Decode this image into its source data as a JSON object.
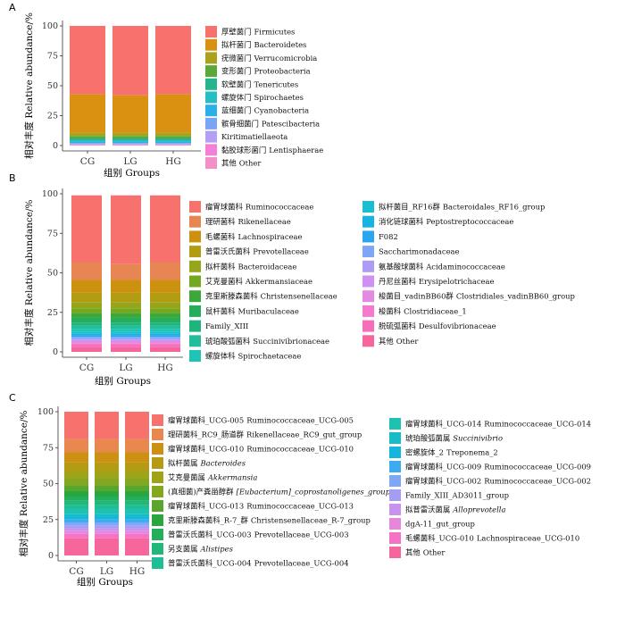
{
  "chart_data": [
    {
      "panel": "A",
      "type": "bar",
      "stacked": true,
      "categories": [
        "CG",
        "LG",
        "HG"
      ],
      "xlabel": "组别 Groups",
      "ylabel": "相对丰度 Relative abundance/%",
      "ylim": [
        0,
        100
      ],
      "yticks": [
        0,
        25,
        50,
        75,
        100
      ],
      "series": [
        {
          "name": "其他 Other",
          "color": "#f38ec7",
          "values": [
            0.5,
            0.5,
            0.5
          ]
        },
        {
          "name": "黏胶球形菌门 Lentisphaerae",
          "color": "#f47fd8",
          "values": [
            0.5,
            0.5,
            0.5
          ]
        },
        {
          "name": "Kiritimatiellaeota",
          "color": "#b39ff3",
          "values": [
            0.5,
            0.5,
            0.5
          ]
        },
        {
          "name": "髌骨细菌门 Patescibacteria",
          "color": "#7aa5f5",
          "values": [
            0.6,
            0.6,
            0.6
          ]
        },
        {
          "name": "蓝细菌门 Cyanobacteria",
          "color": "#2ab0e8",
          "values": [
            1.2,
            1.2,
            1.2
          ]
        },
        {
          "name": "螺旋体门 Spirochaetes",
          "color": "#26bdc3",
          "values": [
            1.2,
            1.2,
            1.2
          ]
        },
        {
          "name": "软壁菌门 Tenericutes",
          "color": "#24b58c",
          "values": [
            1.5,
            1.5,
            1.5
          ]
        },
        {
          "name": "变形菌门 Proteobacteria",
          "color": "#5aa83a",
          "values": [
            2.0,
            2.0,
            2.0
          ]
        },
        {
          "name": "疣微菌门 Verrucomicrobia",
          "color": "#aaa21c",
          "values": [
            3.0,
            3.0,
            3.0
          ]
        },
        {
          "name": "拟杆菌门 Bacteroidetes",
          "color": "#da9112",
          "values": [
            32,
            31,
            32
          ]
        },
        {
          "name": "厚壁菌门 Firmicutes",
          "color": "#f7726c",
          "values": [
            57,
            58,
            57
          ]
        }
      ]
    },
    {
      "panel": "B",
      "type": "bar",
      "stacked": true,
      "categories": [
        "CG",
        "LG",
        "HG"
      ],
      "xlabel": "组别 Groups",
      "ylabel": "相对丰度 Relative abundance/%",
      "ylim": [
        0,
        100
      ],
      "yticks": [
        0,
        25,
        50,
        75,
        100
      ],
      "series": [
        {
          "name": "其他 Other",
          "color": "#f7659d",
          "values": [
            3,
            3,
            3
          ]
        },
        {
          "name": "脱硫弧菌科 Desulfovibrionaceae",
          "color": "#f76db7",
          "values": [
            1.5,
            1.5,
            1.5
          ]
        },
        {
          "name": "梭菌科 Clostridiaceae_1",
          "color": "#f579cc",
          "values": [
            1,
            1,
            1
          ]
        },
        {
          "name": "梭菌目_vadinBB60群 Clostridiales_vadinBB60_group",
          "color": "#e58ae2",
          "values": [
            1,
            1,
            1
          ]
        },
        {
          "name": "丹尼丝菌科 Erysipelotrichaceae",
          "color": "#cf8ff3",
          "values": [
            1,
            1,
            1
          ]
        },
        {
          "name": "氨基酸球菌科 Acidaminococcaceae",
          "color": "#ad9bf5",
          "values": [
            1,
            1,
            1
          ]
        },
        {
          "name": "Saccharimonadaceae",
          "color": "#7da6f7",
          "values": [
            1,
            1,
            1
          ]
        },
        {
          "name": "F082",
          "color": "#2aa6f0",
          "values": [
            1,
            1,
            1
          ]
        },
        {
          "name": "消化链球菌科 Peptostreptococcaceae",
          "color": "#17b4e0",
          "values": [
            1,
            1,
            1
          ]
        },
        {
          "name": "拟杆菌目_RF16群 Bacteroidales_RF16_group",
          "color": "#19bfd1",
          "values": [
            1,
            1,
            1
          ]
        },
        {
          "name": "螺旋体科 Spirochaetaceae",
          "color": "#20c4b7",
          "values": [
            2,
            2,
            2
          ]
        },
        {
          "name": "琥珀酸弧菌科 Succinivibrionaceae",
          "color": "#21bd9c",
          "values": [
            2,
            2,
            2
          ]
        },
        {
          "name": "Family_XIII",
          "color": "#1eb57d",
          "values": [
            2,
            2,
            2
          ]
        },
        {
          "name": "鼠杆菌科 Muribaculaceae",
          "color": "#24ad5a",
          "values": [
            3,
            3,
            3
          ]
        },
        {
          "name": "克里斯滕森菌科 Christensenellaceae",
          "color": "#3ca83a",
          "values": [
            3,
            3,
            3
          ]
        },
        {
          "name": "艾克曼菌科 Akkermansiaceae",
          "color": "#75a821",
          "values": [
            3,
            3,
            3
          ]
        },
        {
          "name": "拟杆菌科 Bacteroidaceae",
          "color": "#97a51b",
          "values": [
            4,
            4,
            4
          ]
        },
        {
          "name": "普雷沃氏菌科 Prevotellaceae",
          "color": "#b19c12",
          "values": [
            6,
            6,
            6
          ]
        },
        {
          "name": "毛螺菌科 Lachnospiraceae",
          "color": "#cc910f",
          "values": [
            8,
            8,
            8
          ]
        },
        {
          "name": "理研菌科 Rikenellaceae",
          "color": "#e78652",
          "values": [
            11,
            10,
            11
          ]
        },
        {
          "name": "瘤胃球菌科 Ruminococcaceae",
          "color": "#f7726c",
          "values": [
            42.5,
            43.5,
            42.5
          ]
        }
      ]
    },
    {
      "panel": "C",
      "type": "bar",
      "stacked": true,
      "categories": [
        "CG",
        "LG",
        "HG"
      ],
      "xlabel": "组别 Groups",
      "ylabel": "相对丰度 Relative abundance/%",
      "ylim": [
        0,
        100
      ],
      "yticks": [
        0,
        25,
        50,
        75,
        100
      ],
      "series": [
        {
          "name": "其他 Other",
          "color": "#f7659d",
          "values": [
            12,
            12,
            12
          ]
        },
        {
          "name": "毛螺菌科_UCG-010 Lachnospiraceae_UCG-010",
          "color": "#f572c4",
          "values": [
            3,
            3,
            3
          ]
        },
        {
          "name": "dgA-11_gut_group",
          "color": "#e787dc",
          "values": [
            2,
            2,
            2
          ]
        },
        {
          "name": "拟普雷沃菌属 Alloprevotella",
          "color": "#c992ef",
          "values": [
            2,
            2,
            2
          ]
        },
        {
          "name": "Family_XIII_AD3011_group",
          "color": "#a59cf4",
          "values": [
            2,
            2,
            2
          ]
        },
        {
          "name": "瘤胃球菌科_UCG-002 Ruminococcaceae_UCG-002",
          "color": "#7ea7f5",
          "values": [
            2,
            2,
            2
          ]
        },
        {
          "name": "瘤胃球菌科_UCG-009 Ruminococcaceae_UCG-009",
          "color": "#3cabef",
          "values": [
            2,
            2,
            2
          ]
        },
        {
          "name": "密螺旋体_2 Treponema_2",
          "color": "#15b5dd",
          "values": [
            2,
            2,
            2
          ]
        },
        {
          "name": "琥珀酸弧菌属 Succinivibrio",
          "color": "#17bcc9",
          "values": [
            2,
            2,
            2
          ]
        },
        {
          "name": "瘤胃球菌科_UCG-014 Ruminococcaceae_UCG-014",
          "color": "#1ec2b1",
          "values": [
            3,
            3,
            3
          ]
        },
        {
          "name": "普雷沃氏菌科_UCG-004 Prevotellaceae_UCG-004",
          "color": "#1ebf96",
          "values": [
            3,
            3,
            3
          ]
        },
        {
          "name": "另支菌属 Alistipes",
          "color": "#1fb77a",
          "values": [
            3,
            3,
            3
          ]
        },
        {
          "name": "普雷沃氏菌科_UCG-003 Prevotellaceae_UCG-003",
          "color": "#23ae5b",
          "values": [
            3,
            3,
            3
          ]
        },
        {
          "name": "克里斯滕森菌科_R-7_群 Christensenellaceae_R-7_group",
          "color": "#2aa63e",
          "values": [
            4,
            4,
            4
          ]
        },
        {
          "name": "瘤胃球菌科_UCG-013 Ruminococcaceae_UCG-013",
          "color": "#5aa52a",
          "values": [
            4,
            4,
            4
          ]
        },
        {
          "name": "(真细菌)产粪甾醇群 [Eubacterium]_coprostanoligenes_group",
          "color": "#85a71e",
          "values": [
            5,
            5,
            5
          ]
        },
        {
          "name": "艾克曼菌属 Akkermansia",
          "color": "#9fa317",
          "values": [
            5,
            5,
            5
          ]
        },
        {
          "name": "拟杆菌属 Bacteroides",
          "color": "#b59a14",
          "values": [
            6,
            6,
            6
          ]
        },
        {
          "name": "瘤胃球菌科_UCG-010 Ruminococcaceae_UCG-010",
          "color": "#cd9012",
          "values": [
            7,
            7,
            7
          ]
        },
        {
          "name": "理研菌科_RC9_肠道群 Rikenellaceae_RC9_gut_group",
          "color": "#e8874e",
          "values": [
            9,
            9,
            9
          ]
        },
        {
          "name": "瘤胃球菌科_UCG-005 Ruminococcaceae_UCG-005",
          "color": "#f7726c",
          "values": [
            19,
            19,
            19
          ]
        }
      ]
    }
  ],
  "panels": [
    {
      "label": "A",
      "legend_columns": [
        [
          {
            "zh": "厚壁菌门",
            "en": "Firmicutes",
            "color": "#f7726c"
          },
          {
            "zh": "拟杆菌门",
            "en": "Bacteroidetes",
            "color": "#da9112"
          },
          {
            "zh": "疣微菌门",
            "en": "Verrucomicrobia",
            "color": "#aaa21c"
          },
          {
            "zh": "变形菌门",
            "en": "Proteobacteria",
            "color": "#5aa83a"
          },
          {
            "zh": "软壁菌门",
            "en": "Tenericutes",
            "color": "#24b58c"
          },
          {
            "zh": "螺旋体门",
            "en": "Spirochaetes",
            "color": "#26bdc3"
          },
          {
            "zh": "蓝细菌门",
            "en": "Cyanobacteria",
            "color": "#2ab0e8"
          },
          {
            "zh": "髌骨细菌门",
            "en": "Patescibacteria",
            "color": "#7aa5f5"
          },
          {
            "zh": "",
            "en": "Kiritimatiellaeota",
            "color": "#b39ff3"
          },
          {
            "zh": "黏胶球形菌门",
            "en": "Lentisphaerae",
            "color": "#f47fd8"
          },
          {
            "zh": "其他",
            "en": "Other",
            "color": "#f38ec7"
          }
        ]
      ]
    },
    {
      "label": "B",
      "legend_columns": [
        [
          {
            "zh": "瘤胃球菌科",
            "en": "Ruminococcaceae",
            "color": "#f7726c"
          },
          {
            "zh": "理研菌科",
            "en": "Rikenellaceae",
            "color": "#e78652"
          },
          {
            "zh": "毛螺菌科",
            "en": "Lachnospiraceae",
            "color": "#cc910f"
          },
          {
            "zh": "普雷沃氏菌科",
            "en": "Prevotellaceae",
            "color": "#b19c12"
          },
          {
            "zh": "拟杆菌科",
            "en": "Bacteroidaceae",
            "color": "#97a51b"
          },
          {
            "zh": "艾克曼菌科",
            "en": "Akkermansiaceae",
            "color": "#75a821"
          },
          {
            "zh": "克里斯滕森菌科",
            "en": "Christensenellaceae",
            "color": "#3ca83a"
          },
          {
            "zh": "鼠杆菌科",
            "en": "Muribaculaceae",
            "color": "#24ad5a"
          },
          {
            "zh": "",
            "en": "Family_XIII",
            "color": "#1eb57d"
          },
          {
            "zh": "琥珀酸弧菌科",
            "en": "Succinivibrionaceae",
            "color": "#21bd9c"
          },
          {
            "zh": "螺旋体科",
            "en": "Spirochaetaceae",
            "color": "#20c4b7"
          }
        ],
        [
          {
            "zh": "拟杆菌目_RF16群",
            "en": "Bacteroidales_RF16_group",
            "color": "#19bfd1"
          },
          {
            "zh": "消化链球菌科",
            "en": "Peptostreptococcaceae",
            "color": "#17b4e0"
          },
          {
            "zh": "",
            "en": "F082",
            "color": "#2aa6f0"
          },
          {
            "zh": "",
            "en": "Saccharimonadaceae",
            "color": "#7da6f7"
          },
          {
            "zh": "氨基酸球菌科",
            "en": "Acidaminococcaceae",
            "color": "#ad9bf5"
          },
          {
            "zh": "丹尼丝菌科",
            "en": "Erysipelotrichaceae",
            "color": "#cf8ff3"
          },
          {
            "zh": "梭菌目_vadinBB60群",
            "en": "Clostridiales_vadinBB60_group",
            "color": "#e58ae2"
          },
          {
            "zh": "梭菌科",
            "en": "Clostridiaceae_1",
            "color": "#f579cc"
          },
          {
            "zh": "脱硫弧菌科",
            "en": "Desulfovibrionaceae",
            "color": "#f76db7"
          },
          {
            "zh": "其他",
            "en": "Other",
            "color": "#f7659d"
          }
        ]
      ]
    },
    {
      "label": "C",
      "legend_columns": [
        [
          {
            "zh": "瘤胃球菌科_UCG-005",
            "en": "Ruminococcaceae_UCG-005",
            "color": "#f7726c"
          },
          {
            "zh": "理研菌科_RC9_肠道群",
            "en": "Rikenellaceae_RC9_gut_group",
            "color": "#e8874e"
          },
          {
            "zh": "瘤胃球菌科_UCG-010",
            "en": "Ruminococcaceae_UCG-010",
            "color": "#cd9012"
          },
          {
            "zh": "拟杆菌属",
            "en": "Bacteroides",
            "color": "#b59a14",
            "italic": true
          },
          {
            "zh": "艾克曼菌属",
            "en": "Akkermansia",
            "color": "#9fa317",
            "italic": true
          },
          {
            "zh": "(真细菌)产粪甾醇群",
            "en": "[Eubacterium]_coprostanoligenes_group",
            "color": "#85a71e",
            "italic": true
          },
          {
            "zh": "瘤胃球菌科_UCG-013",
            "en": "Ruminococcaceae_UCG-013",
            "color": "#5aa52a"
          },
          {
            "zh": "克里斯滕森菌科_R-7_群",
            "en": "Christensenellaceae_R-7_group",
            "color": "#2aa63e"
          },
          {
            "zh": "普雷沃氏菌科_UCG-003",
            "en": "Prevotellaceae_UCG-003",
            "color": "#23ae5b"
          },
          {
            "zh": "另支菌属",
            "en": "Alistipes",
            "color": "#1fb77a",
            "italic": true
          },
          {
            "zh": "普雷沃氏菌科_UCG-004",
            "en": "Prevotellaceae_UCG-004",
            "color": "#1ebf96"
          }
        ],
        [
          {
            "zh": "瘤胃球菌科_UCG-014",
            "en": "Ruminococcaceae_UCG-014",
            "color": "#1ec2b1"
          },
          {
            "zh": "琥珀酸弧菌属",
            "en": "Succinivibrio",
            "color": "#17bcc9",
            "italic": true
          },
          {
            "zh": "密螺旋体_2",
            "en": "Treponema_2",
            "color": "#15b5dd"
          },
          {
            "zh": "瘤胃球菌科_UCG-009",
            "en": "Ruminococcaceae_UCG-009",
            "color": "#3cabef"
          },
          {
            "zh": "瘤胃球菌科_UCG-002",
            "en": "Ruminococcaceae_UCG-002",
            "color": "#7ea7f5"
          },
          {
            "zh": "",
            "en": "Family_XIII_AD3011_group",
            "color": "#a59cf4"
          },
          {
            "zh": "拟普雷沃菌属",
            "en": "Alloprevotella",
            "color": "#c992ef",
            "italic": true
          },
          {
            "zh": "",
            "en": "dgA-11_gut_group",
            "color": "#e787dc"
          },
          {
            "zh": "毛螺菌科_UCG-010",
            "en": "Lachnospiraceae_UCG-010",
            "color": "#f572c4"
          },
          {
            "zh": "其他",
            "en": "Other",
            "color": "#f7659d"
          }
        ]
      ]
    }
  ]
}
